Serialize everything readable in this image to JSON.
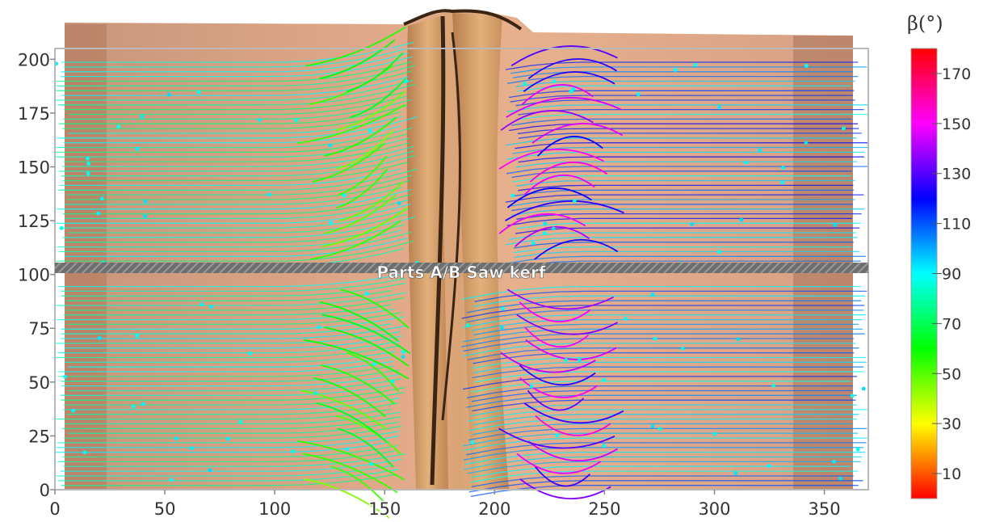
{
  "chart_data": {
    "type": "scatter",
    "title": "",
    "xlabel": "",
    "ylabel": "",
    "xlim": [
      0,
      370
    ],
    "ylim": [
      0,
      205
    ],
    "x_ticks": [
      0,
      50,
      100,
      150,
      200,
      250,
      300,
      350
    ],
    "y_ticks": [
      0,
      25,
      50,
      75,
      100,
      125,
      150,
      175,
      200
    ],
    "grid": false,
    "annotation": {
      "label": "Parts A/B  Saw kerf",
      "y": 101
    },
    "colorbar": {
      "title": "β(°)",
      "range": [
        0,
        180
      ],
      "ticks": [
        10,
        30,
        50,
        70,
        90,
        110,
        130,
        150,
        170
      ],
      "colors": [
        "#ff0000",
        "#ffff00",
        "#00ff00",
        "#00ffff",
        "#0000ff",
        "#ff00ff",
        "#ff0000"
      ]
    },
    "fiber_groups": [
      {
        "region": "lower-left",
        "x_range": [
          0,
          160
        ],
        "y_range": [
          2,
          96
        ],
        "beta_range": [
          45,
          92
        ]
      },
      {
        "region": "upper-left",
        "x_range": [
          0,
          165
        ],
        "y_range": [
          104,
          200
        ],
        "beta_range": [
          40,
          92
        ]
      },
      {
        "region": "lower-right",
        "x_range": [
          185,
          370
        ],
        "y_range": [
          2,
          96
        ],
        "beta_range": [
          88,
          150
        ]
      },
      {
        "region": "upper-right",
        "x_range": [
          205,
          370
        ],
        "y_range": [
          104,
          200
        ],
        "beta_range": [
          88,
          165
        ]
      }
    ]
  }
}
